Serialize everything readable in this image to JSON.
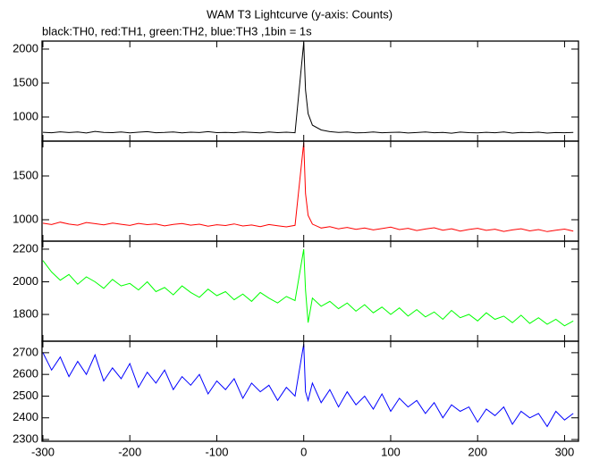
{
  "chart_data": {
    "type": "line",
    "title": "WAM T3 Lightcurve (y-axis: Counts)",
    "subtitle": "black:TH0, red:TH1, green:TH2, blue:TH3 ,1bin = 1s",
    "x": [
      -300,
      -290,
      -280,
      -270,
      -260,
      -250,
      -240,
      -230,
      -220,
      -210,
      -200,
      -190,
      -180,
      -170,
      -160,
      -150,
      -140,
      -130,
      -120,
      -110,
      -100,
      -90,
      -80,
      -70,
      -60,
      -50,
      -40,
      -30,
      -20,
      -10,
      0,
      2,
      5,
      10,
      20,
      30,
      40,
      50,
      60,
      70,
      80,
      90,
      100,
      110,
      120,
      130,
      140,
      150,
      160,
      170,
      180,
      190,
      200,
      210,
      220,
      230,
      240,
      250,
      260,
      270,
      280,
      290,
      300,
      310
    ],
    "xlim": [
      -301,
      316
    ],
    "xticks": [
      -300,
      -200,
      -100,
      0,
      100,
      200,
      300
    ],
    "panels": [
      {
        "color": "#000000",
        "ylim": [
          645,
          2118
        ],
        "yticks": [
          1000,
          1500,
          2000
        ],
        "values": [
          775,
          768,
          782,
          771,
          779,
          765,
          788,
          772,
          770,
          781,
          767,
          776,
          784,
          769,
          773,
          780,
          766,
          777,
          771,
          785,
          770,
          774,
          768,
          779,
          772,
          766,
          781,
          770,
          776,
          769,
          2100,
          1400,
          1050,
          880,
          810,
          785,
          772,
          779,
          766,
          770,
          781,
          768,
          774,
          777,
          765,
          771,
          780,
          769,
          774,
          762,
          778,
          770,
          767,
          775,
          769,
          781,
          764,
          772,
          770,
          776,
          763,
          771,
          768,
          774
        ]
      },
      {
        "color": "#ff0000",
        "ylim": [
          755,
          1898
        ],
        "yticks": [
          1000,
          1500
        ],
        "values": [
          960,
          945,
          972,
          950,
          938,
          968,
          955,
          942,
          962,
          948,
          935,
          958,
          944,
          951,
          930,
          946,
          957,
          938,
          949,
          926,
          943,
          934,
          952,
          928,
          940,
          921,
          945,
          932,
          918,
          936,
          1880,
          1300,
          1050,
          950,
          905,
          920,
          896,
          912,
          890,
          905,
          884,
          899,
          915,
          888,
          902,
          876,
          894,
          908,
          881,
          897,
          870,
          889,
          902,
          878,
          892,
          866,
          884,
          897,
          872,
          888,
          864,
          881,
          893,
          870
        ]
      },
      {
        "color": "#00ff00",
        "ylim": [
          1636,
          2249
        ],
        "yticks": [
          1800,
          2000,
          2200
        ],
        "values": [
          2130,
          2060,
          2010,
          2045,
          1985,
          2030,
          2000,
          1960,
          2015,
          1975,
          1990,
          1950,
          2000,
          1940,
          1965,
          1920,
          1975,
          1935,
          1905,
          1955,
          1915,
          1940,
          1890,
          1925,
          1880,
          1935,
          1900,
          1870,
          1910,
          1885,
          2200,
          1950,
          1750,
          1900,
          1850,
          1880,
          1835,
          1870,
          1820,
          1860,
          1810,
          1845,
          1800,
          1840,
          1790,
          1830,
          1785,
          1815,
          1770,
          1825,
          1780,
          1800,
          1760,
          1810,
          1770,
          1790,
          1750,
          1795,
          1745,
          1780,
          1740,
          1770,
          1730,
          1760
        ]
      },
      {
        "color": "#0000ff",
        "ylim": [
          2292,
          2753
        ],
        "yticks": [
          2300,
          2400,
          2500,
          2600,
          2700
        ],
        "values": [
          2700,
          2620,
          2680,
          2590,
          2660,
          2600,
          2690,
          2570,
          2630,
          2580,
          2650,
          2540,
          2610,
          2560,
          2620,
          2530,
          2590,
          2550,
          2600,
          2510,
          2570,
          2530,
          2580,
          2490,
          2560,
          2520,
          2550,
          2480,
          2540,
          2500,
          2740,
          2520,
          2480,
          2560,
          2470,
          2530,
          2450,
          2520,
          2460,
          2500,
          2440,
          2510,
          2430,
          2490,
          2450,
          2480,
          2420,
          2470,
          2400,
          2460,
          2430,
          2450,
          2380,
          2440,
          2410,
          2450,
          2370,
          2430,
          2400,
          2420,
          2360,
          2430,
          2390,
          2420
        ]
      }
    ]
  }
}
